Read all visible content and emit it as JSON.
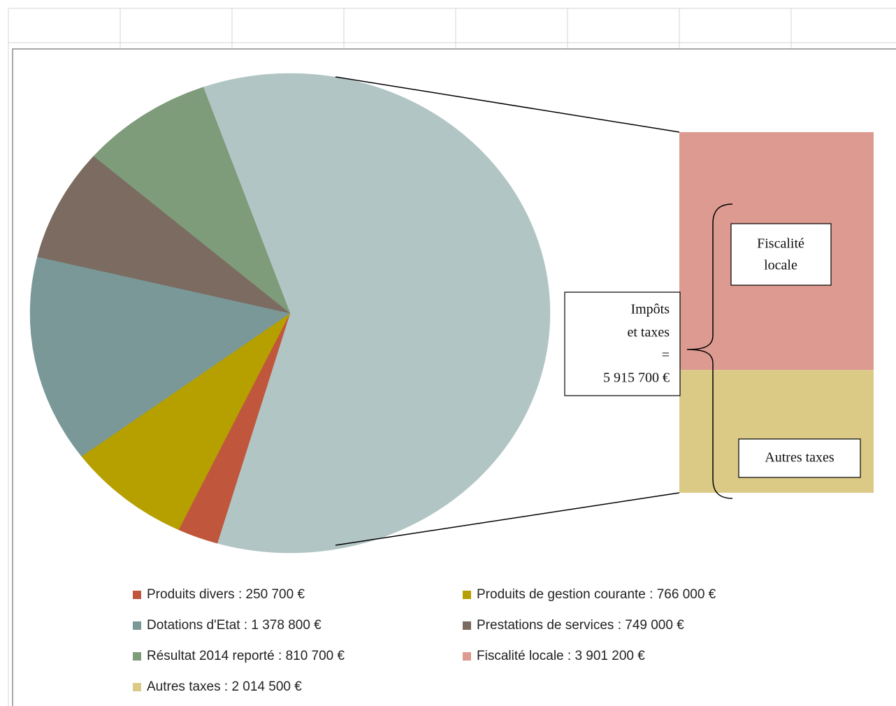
{
  "chart_data": {
    "type": "pie",
    "categories": [
      "Produits divers :  250 700 €",
      "Produits de gestion courante : 766 000 €",
      "Dotations d'Etat  : 1 378 800 €",
      "Prestations de services : 749 000 €",
      "Résultat 2014 reporté : 810 700 €"
    ],
    "values": [
      250700,
      766000,
      1378800,
      749000,
      810700
    ],
    "colors": [
      "#c0573d",
      "#b5a000",
      "#7a9898",
      "#7b6b60",
      "#7e9b7a"
    ],
    "combined_color": "#b2c5c5",
    "combined_label": [
      "Impôts",
      "et taxes",
      "=",
      "5 915 700 €"
    ],
    "secondary": {
      "type": "bar",
      "categories": [
        "Fiscalité locale : 3 901 200 €",
        "Autres  taxes : 2 014 500 €"
      ],
      "values": [
        3901200,
        2014500
      ],
      "colors": [
        "#dc9a90",
        "#dbca86"
      ],
      "labels": [
        [
          "Fiscalité",
          "locale"
        ],
        [
          "Autres taxes"
        ]
      ]
    },
    "legend": "bottom"
  }
}
